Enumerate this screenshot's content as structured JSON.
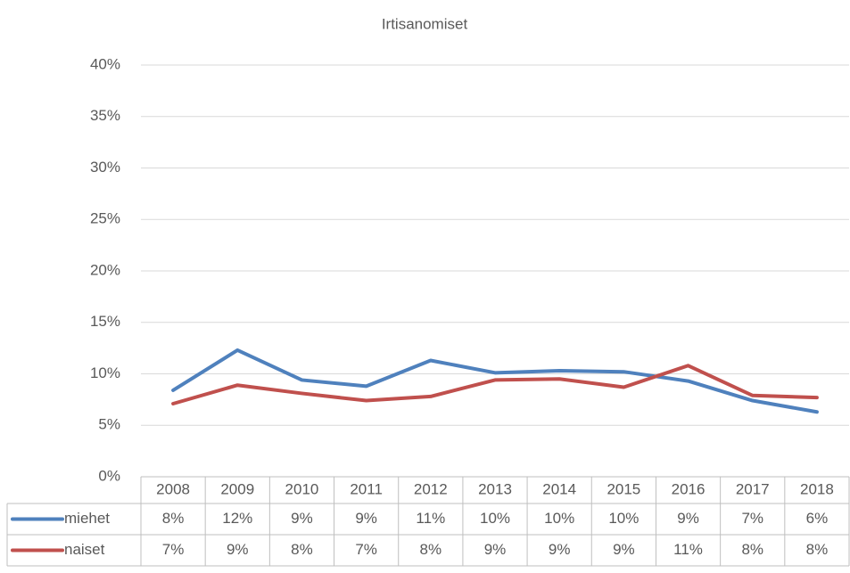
{
  "chart_data": {
    "type": "line",
    "title": "Irtisanomiset",
    "categories": [
      "2008",
      "2009",
      "2010",
      "2011",
      "2012",
      "2013",
      "2014",
      "2015",
      "2016",
      "2017",
      "2018"
    ],
    "series": [
      {
        "name": "miehet",
        "color": "#4f81bd",
        "values": [
          8.4,
          12.3,
          9.4,
          8.8,
          11.3,
          10.1,
          10.3,
          10.2,
          9.3,
          7.4,
          6.3
        ],
        "value_labels": [
          "8%",
          "12%",
          "9%",
          "9%",
          "11%",
          "10%",
          "10%",
          "10%",
          "9%",
          "7%",
          "6%"
        ]
      },
      {
        "name": "naiset",
        "color": "#c0504d",
        "values": [
          7.1,
          8.9,
          8.1,
          7.4,
          7.8,
          9.4,
          9.5,
          8.7,
          10.8,
          7.9,
          7.7
        ],
        "value_labels": [
          "7%",
          "9%",
          "8%",
          "7%",
          "8%",
          "9%",
          "9%",
          "9%",
          "11%",
          "8%",
          "8%"
        ]
      }
    ],
    "ylim": [
      0,
      40
    ],
    "yticks": [
      {
        "value": 0,
        "label": "0%"
      },
      {
        "value": 5,
        "label": "5%"
      },
      {
        "value": 10,
        "label": "10%"
      },
      {
        "value": 15,
        "label": "15%"
      },
      {
        "value": 20,
        "label": "20%"
      },
      {
        "value": 25,
        "label": "25%"
      },
      {
        "value": 30,
        "label": "30%"
      },
      {
        "value": 35,
        "label": "35%"
      },
      {
        "value": 40,
        "label": "40%"
      }
    ],
    "grid": true,
    "data_table": true
  }
}
